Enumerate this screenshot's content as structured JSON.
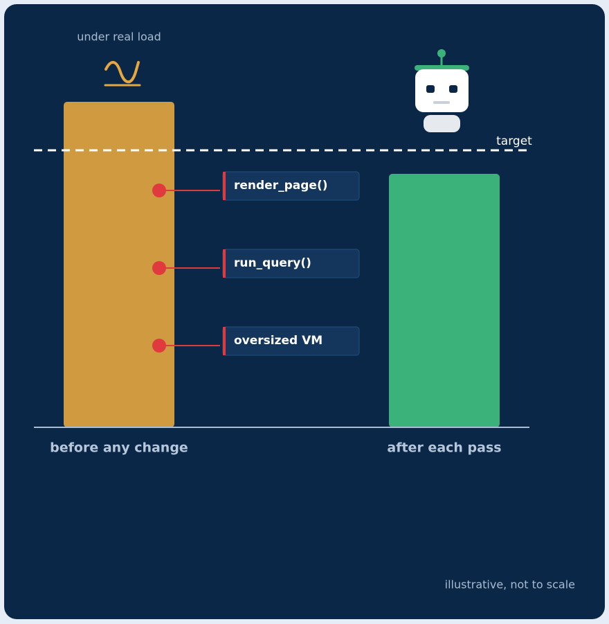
{
  "annotation_top": "under real load",
  "target_label": "target",
  "callouts": [
    "render_page()",
    "run_query()",
    "oversized VM"
  ],
  "bars": [
    "before any change",
    "after each pass"
  ],
  "footnote": "illustrative, not to scale"
}
